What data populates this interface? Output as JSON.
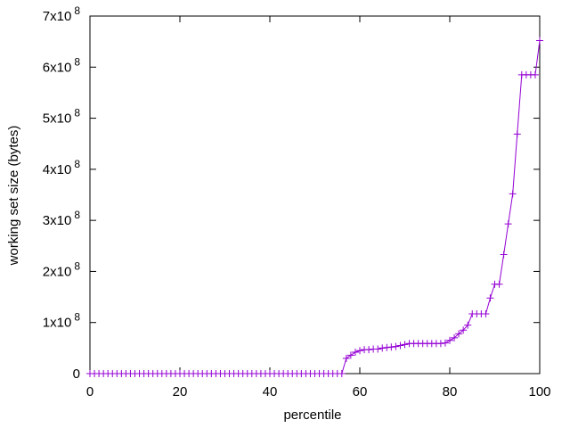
{
  "chart_data": {
    "type": "line",
    "title": "",
    "xlabel": "percentile",
    "ylabel": "working set size (bytes)",
    "xlim": [
      0,
      100
    ],
    "ylim": [
      0,
      700000000
    ],
    "x_ticks": [
      {
        "value": 0,
        "label": "0"
      },
      {
        "value": 20,
        "label": "20"
      },
      {
        "value": 40,
        "label": "40"
      },
      {
        "value": 60,
        "label": "60"
      },
      {
        "value": 80,
        "label": "80"
      },
      {
        "value": 100,
        "label": "100"
      }
    ],
    "y_ticks": [
      {
        "value": 0,
        "mantissa": "0",
        "exp": ""
      },
      {
        "value": 100000000,
        "mantissa": "1x10",
        "exp": "8"
      },
      {
        "value": 200000000,
        "mantissa": "2x10",
        "exp": "8"
      },
      {
        "value": 300000000,
        "mantissa": "3x10",
        "exp": "8"
      },
      {
        "value": 400000000,
        "mantissa": "4x10",
        "exp": "8"
      },
      {
        "value": 500000000,
        "mantissa": "5x10",
        "exp": "8"
      },
      {
        "value": 600000000,
        "mantissa": "6x10",
        "exp": "8"
      },
      {
        "value": 700000000,
        "mantissa": "7x10",
        "exp": "8"
      }
    ],
    "grid": false,
    "line_color": "#9400D3",
    "marker": "plus",
    "series": [
      {
        "x": [
          0,
          1,
          2,
          3,
          4,
          5,
          6,
          7,
          8,
          9,
          10,
          11,
          12,
          13,
          14,
          15,
          16,
          17,
          18,
          19,
          20,
          21,
          22,
          23,
          24,
          25,
          26,
          27,
          28,
          29,
          30,
          31,
          32,
          33,
          34,
          35,
          36,
          37,
          38,
          39,
          40,
          41,
          42,
          43,
          44,
          45,
          46,
          47,
          48,
          49,
          50,
          51,
          52,
          53,
          54,
          55,
          56,
          57,
          58,
          59,
          60,
          61,
          62,
          63,
          64,
          65,
          66,
          67,
          68,
          69,
          70,
          71,
          72,
          73,
          74,
          75,
          76,
          77,
          78,
          79,
          80,
          81,
          82,
          83,
          84,
          85,
          86,
          87,
          88,
          89,
          90,
          91,
          92,
          93,
          94,
          95,
          96,
          97,
          98,
          99,
          100
        ],
        "y": [
          0,
          0,
          0,
          0,
          0,
          0,
          0,
          0,
          0,
          0,
          0,
          0,
          0,
          0,
          0,
          0,
          0,
          0,
          0,
          0,
          0,
          0,
          0,
          0,
          0,
          0,
          0,
          0,
          0,
          0,
          0,
          0,
          0,
          0,
          0,
          0,
          0,
          0,
          0,
          0,
          0,
          0,
          0,
          0,
          0,
          0,
          0,
          0,
          0,
          0,
          0,
          0,
          0,
          0,
          0,
          0,
          0,
          30000000,
          36000000,
          42000000,
          45000000,
          47000000,
          47000000,
          48000000,
          48000000,
          50000000,
          51000000,
          52000000,
          53000000,
          55000000,
          57000000,
          59000000,
          59000000,
          59000000,
          59000000,
          59000000,
          59000000,
          59000000,
          59000000,
          60000000,
          65000000,
          70000000,
          78000000,
          85000000,
          95000000,
          117000000,
          117000000,
          117000000,
          117000000,
          148000000,
          175000000,
          175000000,
          233000000,
          293000000,
          352000000,
          469000000,
          585000000,
          585000000,
          585000000,
          585000000,
          652000000
        ]
      }
    ]
  }
}
